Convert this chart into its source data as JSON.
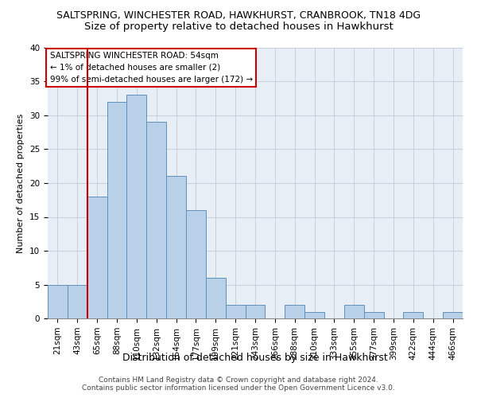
{
  "title1": "SALTSPRING, WINCHESTER ROAD, HAWKHURST, CRANBROOK, TN18 4DG",
  "title2": "Size of property relative to detached houses in Hawkhurst",
  "xlabel": "Distribution of detached houses by size in Hawkhurst",
  "ylabel": "Number of detached properties",
  "categories": [
    "21sqm",
    "43sqm",
    "65sqm",
    "88sqm",
    "110sqm",
    "132sqm",
    "154sqm",
    "177sqm",
    "199sqm",
    "221sqm",
    "243sqm",
    "266sqm",
    "288sqm",
    "310sqm",
    "333sqm",
    "355sqm",
    "377sqm",
    "399sqm",
    "422sqm",
    "444sqm",
    "466sqm"
  ],
  "values": [
    5,
    5,
    18,
    32,
    33,
    29,
    21,
    16,
    6,
    2,
    2,
    0,
    2,
    1,
    0,
    2,
    1,
    0,
    1,
    0,
    1
  ],
  "bar_color": "#b8d0e8",
  "bar_edge_color": "#6090bb",
  "vline_x": 1.5,
  "vline_color": "#cc0000",
  "annotation_text": "SALTSPRING WINCHESTER ROAD: 54sqm\n← 1% of detached houses are smaller (2)\n99% of semi-detached houses are larger (172) →",
  "annotation_box_color": "white",
  "annotation_box_edge": "#cc0000",
  "ylim": [
    0,
    40
  ],
  "yticks": [
    0,
    5,
    10,
    15,
    20,
    25,
    30,
    35,
    40
  ],
  "grid_color": "#c8d0dc",
  "background_color": "#e8eef5",
  "footer1": "Contains HM Land Registry data © Crown copyright and database right 2024.",
  "footer2": "Contains public sector information licensed under the Open Government Licence v3.0.",
  "title1_fontsize": 9,
  "title2_fontsize": 9.5,
  "xlabel_fontsize": 9,
  "ylabel_fontsize": 8,
  "tick_fontsize": 7.5,
  "annotation_fontsize": 7.5,
  "footer_fontsize": 6.5
}
